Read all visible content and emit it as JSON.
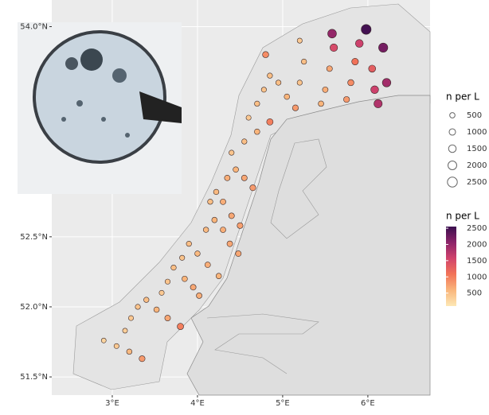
{
  "chart_data": {
    "type": "scatter",
    "x": [
      2.9,
      3.05,
      3.2,
      3.35,
      3.15,
      3.22,
      3.3,
      3.4,
      3.52,
      3.65,
      3.8,
      3.58,
      3.65,
      3.72,
      3.85,
      3.95,
      4.02,
      3.82,
      3.9,
      4.0,
      4.12,
      4.25,
      4.1,
      4.2,
      4.3,
      4.38,
      4.48,
      4.15,
      4.22,
      4.3,
      4.4,
      4.5,
      4.35,
      4.45,
      4.55,
      4.65,
      4.4,
      4.55,
      4.7,
      4.85,
      4.6,
      4.7,
      4.78,
      4.85,
      4.8,
      4.95,
      5.05,
      5.15,
      5.2,
      5.25,
      5.2,
      5.45,
      5.5,
      5.55,
      5.6,
      5.58,
      5.75,
      5.8,
      5.85,
      5.9,
      5.98,
      6.05,
      6.08,
      6.12,
      6.18,
      6.22
    ],
    "values": [
      51.76,
      51.72,
      51.68,
      51.63,
      51.83,
      51.92,
      52.0,
      52.05,
      51.98,
      51.92,
      51.86,
      52.1,
      52.18,
      52.28,
      52.2,
      52.14,
      52.08,
      52.35,
      52.45,
      52.38,
      52.3,
      52.22,
      52.55,
      52.62,
      52.55,
      52.45,
      52.38,
      52.75,
      52.82,
      52.75,
      52.65,
      52.58,
      52.92,
      52.98,
      52.92,
      52.85,
      53.1,
      53.18,
      53.25,
      53.32,
      53.35,
      53.45,
      53.55,
      53.65,
      53.8,
      53.6,
      53.5,
      53.42,
      53.6,
      53.75,
      53.9,
      53.45,
      53.55,
      53.7,
      53.85,
      53.95,
      53.48,
      53.6,
      53.75,
      53.88,
      53.98,
      53.7,
      53.55,
      53.45,
      53.85,
      53.6
    ],
    "sizes": [
      300,
      400,
      550,
      800,
      350,
      400,
      450,
      500,
      600,
      700,
      1000,
      400,
      450,
      500,
      600,
      700,
      650,
      450,
      500,
      550,
      650,
      600,
      550,
      600,
      650,
      700,
      700,
      500,
      550,
      650,
      700,
      750,
      650,
      600,
      700,
      800,
      450,
      500,
      600,
      1000,
      400,
      500,
      450,
      500,
      900,
      500,
      600,
      800,
      450,
      500,
      400,
      600,
      650,
      700,
      1500,
      2000,
      800,
      900,
      1100,
      1600,
      2500,
      1300,
      1600,
      1800,
      2200,
      1900
    ],
    "xlim": [
      2.29,
      6.73
    ],
    "ylim": [
      51.37,
      54.19
    ],
    "xticks": [
      {
        "value": 3,
        "label": "3°E"
      },
      {
        "value": 4,
        "label": "4°E"
      },
      {
        "value": 5,
        "label": "5°E"
      },
      {
        "value": 6,
        "label": "6°E"
      }
    ],
    "yticks": [
      {
        "value": 51.5,
        "label": "51.5°N"
      },
      {
        "value": 52.0,
        "label": "52.0°N"
      },
      {
        "value": 52.5,
        "label": "52.5°N"
      },
      {
        "value": 54.0,
        "label": "54.0°N"
      }
    ],
    "grid": true,
    "size_legend": {
      "title": "n per L",
      "values": [
        500,
        1000,
        1500,
        2000,
        2500
      ]
    },
    "color_legend": {
      "title": "n per L",
      "ticks": [
        500,
        1000,
        1500,
        2000,
        2500
      ],
      "lim": [
        100,
        2550
      ],
      "colors": [
        "#fde8b5",
        "#f9b67c",
        "#f27458",
        "#d1436c",
        "#8c2369",
        "#3b0f4f"
      ]
    }
  }
}
